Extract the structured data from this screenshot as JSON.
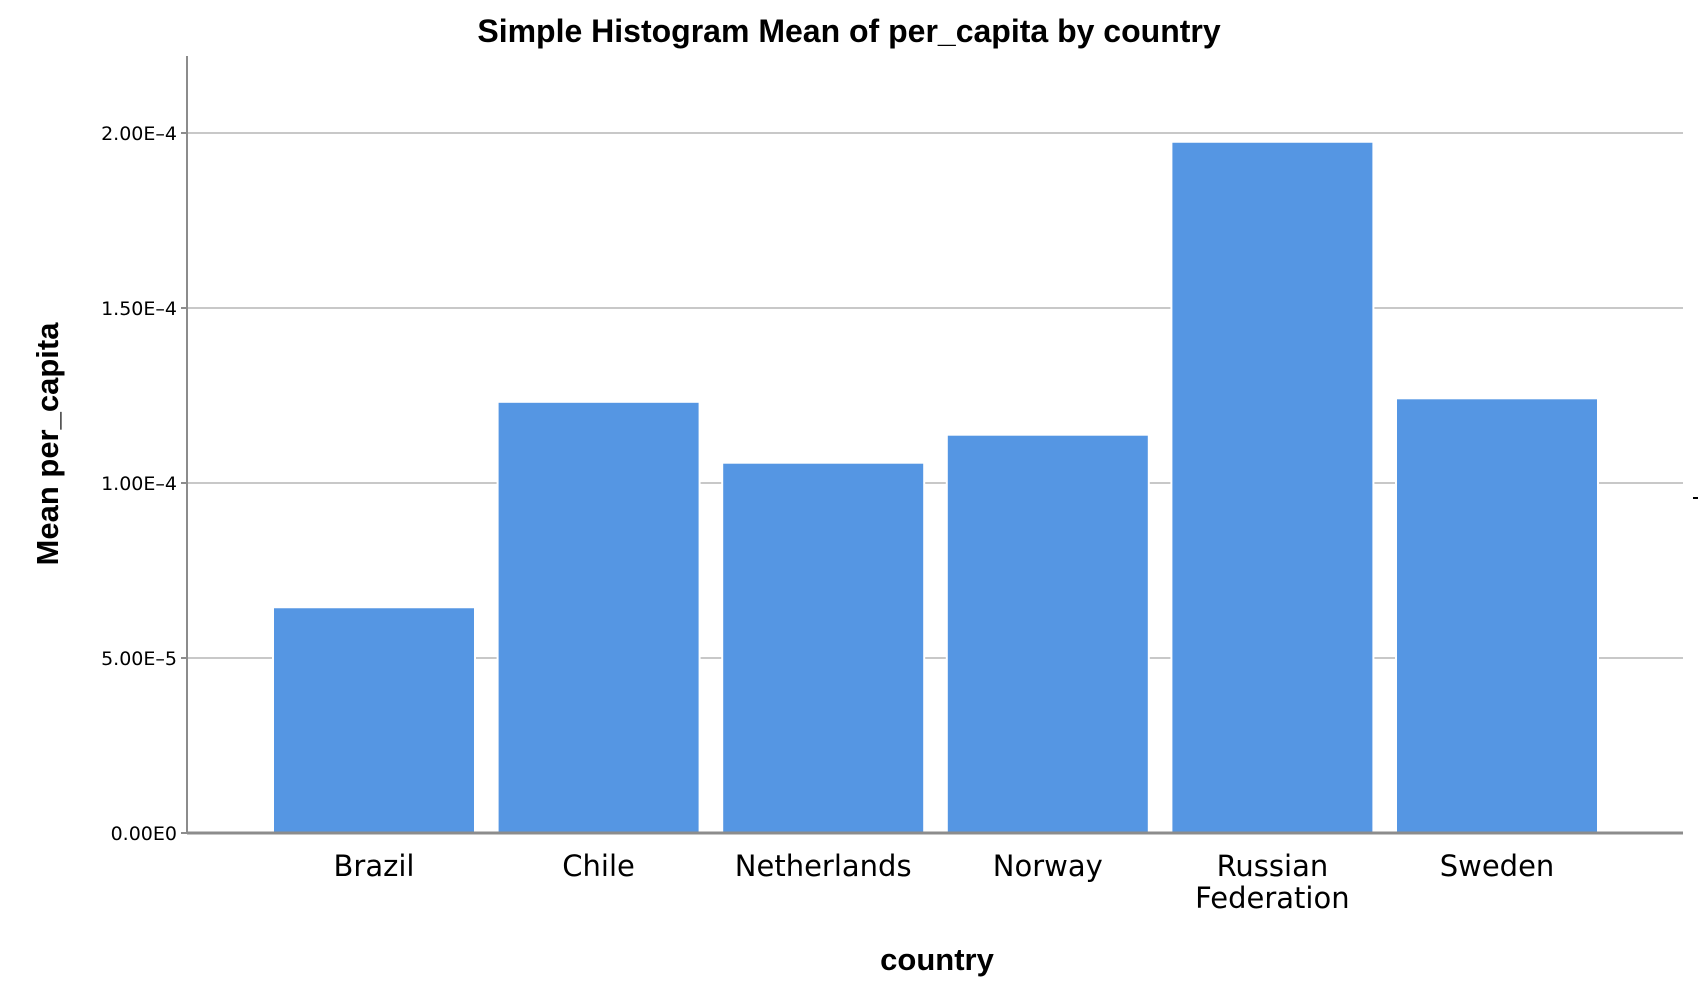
{
  "chart_data": {
    "type": "bar",
    "title": "Simple Histogram Mean of per_capita by country",
    "xlabel": "country",
    "ylabel": "Mean per_capita",
    "categories": [
      [
        "Brazil"
      ],
      [
        "Chile"
      ],
      [
        "Netherlands"
      ],
      [
        "Norway"
      ],
      [
        "Russian",
        "Federation"
      ],
      [
        "Sweden"
      ]
    ],
    "values": [
      6.45e-05,
      0.0001232,
      0.0001058,
      0.0001138,
      0.0001975,
      0.0001242
    ],
    "ylim": [
      0,
      0.000222
    ],
    "yticks": [
      {
        "value": 0,
        "label": "0.00E0"
      },
      {
        "value": 5e-05,
        "label": "5.00E–5"
      },
      {
        "value": 0.0001,
        "label": "1.00E–4"
      },
      {
        "value": 0.00015,
        "label": "1.50E–4"
      },
      {
        "value": 0.0002,
        "label": "2.00E–4"
      }
    ],
    "grid": true,
    "bar_color": "#5596e3"
  }
}
